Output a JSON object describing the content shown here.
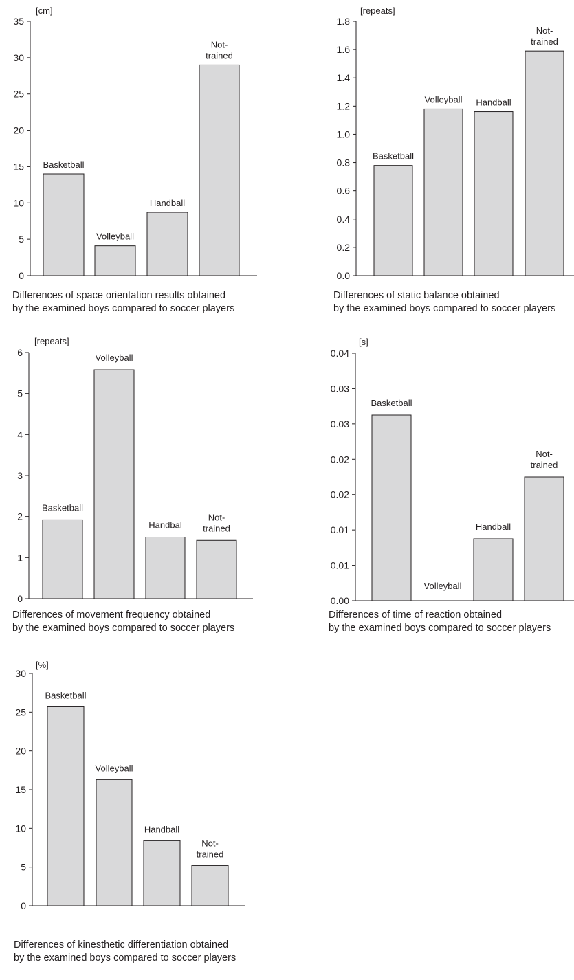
{
  "colors": {
    "bar_fill": "#d9d9da",
    "bar_stroke": "#231f20",
    "axis": "#231f20",
    "text": "#231f20"
  },
  "chart_data": [
    {
      "type": "bar",
      "unit": "[cm]",
      "categories": [
        "Basketball",
        "Volleyball",
        "Handball",
        "Not-trained"
      ],
      "values": [
        14.0,
        4.1,
        8.7,
        29.0
      ],
      "ylim": [
        0,
        35
      ],
      "yticks": [
        "0",
        "5",
        "10",
        "15",
        "20",
        "25",
        "30",
        "35"
      ],
      "caption": [
        "Differences of space orientation results obtained",
        "by the examined boys compared to soccer players"
      ],
      "grid": false
    },
    {
      "type": "bar",
      "unit": "[repeats]",
      "categories": [
        "Basketball",
        "Volleyball",
        "Handball",
        "Not-trained"
      ],
      "values": [
        0.78,
        1.18,
        1.16,
        1.59
      ],
      "ylim": [
        0,
        1.8
      ],
      "yticks": [
        "0.0",
        "0.2",
        "0.4",
        "0.6",
        "0.8",
        "1.0",
        "1.2",
        "1.4",
        "1.6",
        "1.8"
      ],
      "caption": [
        "Differences of static balance obtained",
        "by the examined boys compared to soccer players"
      ],
      "grid": false
    },
    {
      "type": "bar",
      "unit": "[repeats]",
      "categories": [
        "Basketball",
        "Volleyball",
        "Handbal",
        "Not-trained"
      ],
      "values": [
        1.92,
        5.58,
        1.5,
        1.42
      ],
      "ylim": [
        0,
        6
      ],
      "yticks": [
        "0",
        "1",
        "2",
        "3",
        "4",
        "5",
        "6"
      ],
      "caption": [
        "Differences of movement frequency obtained",
        "by the examined boys compared to soccer players"
      ],
      "grid": false
    },
    {
      "type": "bar",
      "unit": "[s]",
      "categories": [
        "Basketball",
        "Volleyball",
        "Handball",
        "Not-trained"
      ],
      "values": [
        0.03,
        0.0,
        0.01,
        0.02
      ],
      "ylim": [
        0,
        0.04
      ],
      "yticks": [
        "0.00",
        "0.01",
        "0.01",
        "0.02",
        "0.02",
        "0.03",
        "0.03",
        "0.04"
      ],
      "caption": [
        "Differences of time of reaction obtained",
        "by the examined boys compared to soccer players"
      ],
      "grid": false
    },
    {
      "type": "bar",
      "unit": "[%]",
      "categories": [
        "Basketball",
        "Volleyball",
        "Handball",
        "Not-trained"
      ],
      "values": [
        25.7,
        16.3,
        8.4,
        5.2
      ],
      "ylim": [
        0,
        30
      ],
      "yticks": [
        "0",
        "5",
        "10",
        "15",
        "20",
        "25",
        "30"
      ],
      "caption": [
        "Differences of kinesthetic differentiation obtained",
        "by the examined boys compared to soccer players"
      ],
      "grid": false
    }
  ]
}
